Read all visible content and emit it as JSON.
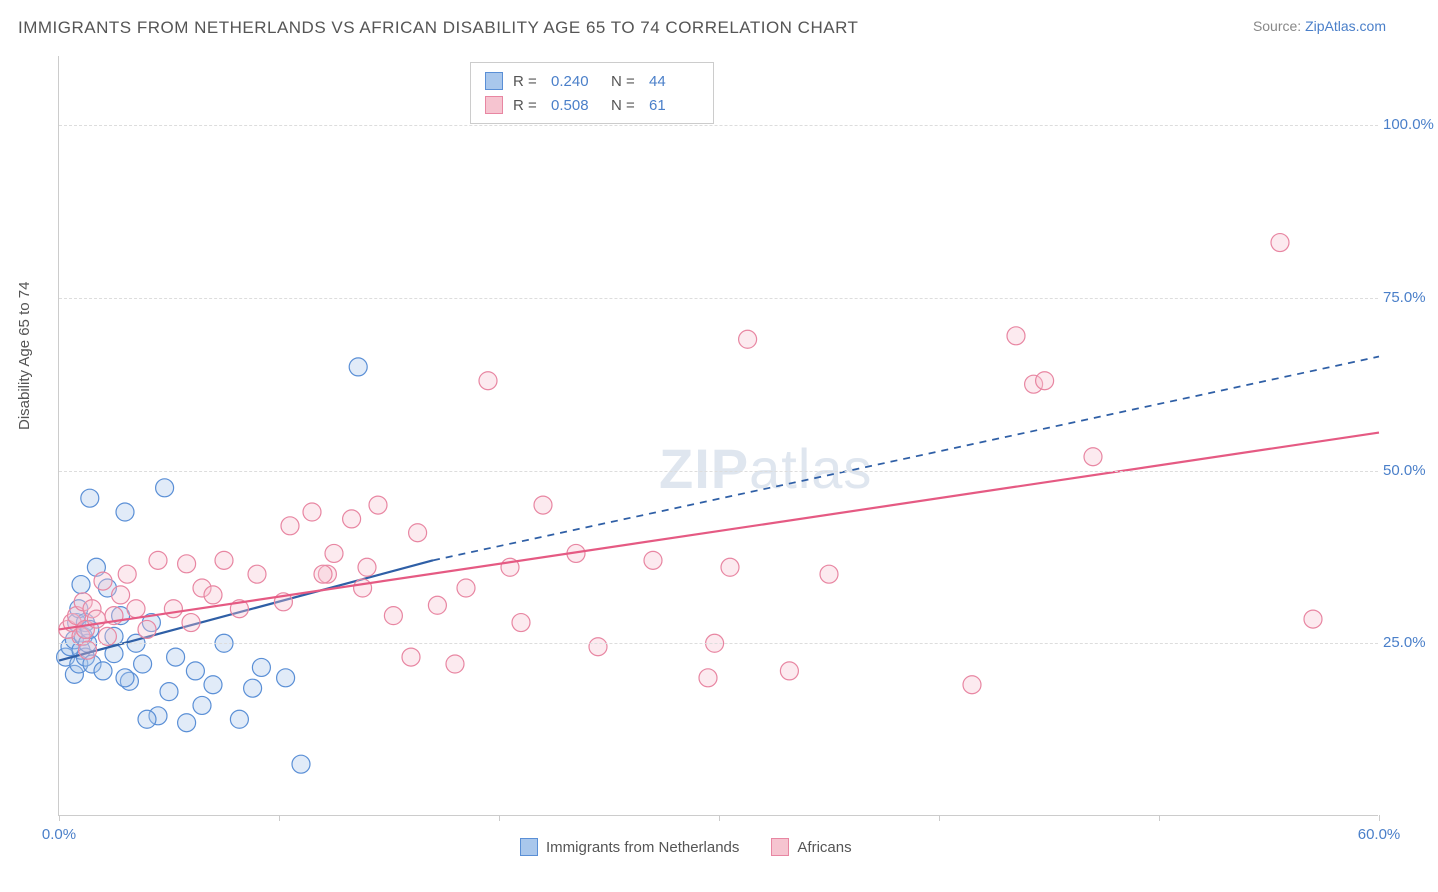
{
  "title": "IMMIGRANTS FROM NETHERLANDS VS AFRICAN DISABILITY AGE 65 TO 74 CORRELATION CHART",
  "source": {
    "label": "Source: ",
    "name": "ZipAtlas.com"
  },
  "y_axis_label": "Disability Age 65 to 74",
  "watermark": {
    "bold": "ZIP",
    "light": "atlas"
  },
  "chart": {
    "type": "scatter",
    "xlim": [
      0,
      60
    ],
    "ylim": [
      0,
      110
    ],
    "xtick_positions": [
      0,
      10,
      20,
      30,
      40,
      50,
      60
    ],
    "xtick_labels": {
      "0": "0.0%",
      "60": "60.0%"
    },
    "ytick_positions": [
      25,
      50,
      75,
      100
    ],
    "ytick_labels": {
      "25": "25.0%",
      "50": "50.0%",
      "75": "75.0%",
      "100": "100.0%"
    },
    "grid_color": "#dddddd",
    "axis_color": "#cccccc",
    "background_color": "#ffffff",
    "label_color": "#4a7fc9",
    "text_color": "#555555",
    "marker_radius": 9,
    "marker_stroke_width": 1.2,
    "marker_fill_opacity": 0.35,
    "series": [
      {
        "name": "Immigrants from Netherlands",
        "color_fill": "#a9c7ec",
        "color_stroke": "#5a8fd6",
        "legend_color": "#a9c7ec",
        "r": "0.240",
        "n": "44",
        "trend": {
          "x1": 0,
          "y1": 22.5,
          "x2": 17,
          "y2": 37,
          "style": "solid",
          "stroke": "#2f5fa6",
          "width": 2.2,
          "ext_x2": 60,
          "ext_y2": 66.5,
          "ext_style": "dashed"
        },
        "points": [
          [
            0.3,
            23
          ],
          [
            0.5,
            24.5
          ],
          [
            0.7,
            20.5
          ],
          [
            0.7,
            25.5
          ],
          [
            0.8,
            28
          ],
          [
            0.9,
            30
          ],
          [
            0.9,
            22
          ],
          [
            1.0,
            24
          ],
          [
            1.0,
            33.5
          ],
          [
            1.1,
            26
          ],
          [
            1.2,
            23
          ],
          [
            1.2,
            28
          ],
          [
            1.3,
            25
          ],
          [
            1.4,
            46
          ],
          [
            1.4,
            27
          ],
          [
            1.5,
            22
          ],
          [
            1.7,
            36
          ],
          [
            2.0,
            21
          ],
          [
            2.2,
            33
          ],
          [
            2.5,
            23.5
          ],
          [
            2.8,
            29
          ],
          [
            3.0,
            44
          ],
          [
            3.2,
            19.5
          ],
          [
            3.5,
            25
          ],
          [
            3.8,
            22
          ],
          [
            4.2,
            28
          ],
          [
            4.5,
            14.5
          ],
          [
            4.8,
            47.5
          ],
          [
            5.0,
            18
          ],
          [
            5.3,
            23
          ],
          [
            5.8,
            13.5
          ],
          [
            6.2,
            21
          ],
          [
            6.5,
            16
          ],
          [
            7.0,
            19
          ],
          [
            7.5,
            25
          ],
          [
            8.2,
            14
          ],
          [
            8.8,
            18.5
          ],
          [
            9.2,
            21.5
          ],
          [
            10.3,
            20
          ],
          [
            11.0,
            7.5
          ],
          [
            13.6,
            65
          ],
          [
            2.5,
            26
          ],
          [
            3.0,
            20
          ],
          [
            4.0,
            14
          ]
        ]
      },
      {
        "name": "Africans",
        "color_fill": "#f6c4d0",
        "color_stroke": "#e886a2",
        "legend_color": "#f6c4d0",
        "r": "0.508",
        "n": "61",
        "trend": {
          "x1": 0,
          "y1": 27,
          "x2": 60,
          "y2": 55.5,
          "style": "solid",
          "stroke": "#e55a83",
          "width": 2.2
        },
        "points": [
          [
            0.4,
            27
          ],
          [
            0.6,
            28
          ],
          [
            0.8,
            29
          ],
          [
            1.0,
            26
          ],
          [
            1.1,
            31
          ],
          [
            1.2,
            27
          ],
          [
            1.3,
            24
          ],
          [
            1.5,
            30
          ],
          [
            1.7,
            28.5
          ],
          [
            2.0,
            34
          ],
          [
            2.2,
            26
          ],
          [
            2.5,
            29
          ],
          [
            2.8,
            32
          ],
          [
            3.1,
            35
          ],
          [
            3.5,
            30
          ],
          [
            4.0,
            27
          ],
          [
            4.5,
            37
          ],
          [
            5.2,
            30
          ],
          [
            5.8,
            36.5
          ],
          [
            6.5,
            33
          ],
          [
            7.0,
            32
          ],
          [
            7.5,
            37
          ],
          [
            8.2,
            30
          ],
          [
            9.0,
            35
          ],
          [
            10.2,
            31
          ],
          [
            10.5,
            42
          ],
          [
            11.5,
            44
          ],
          [
            12.2,
            35
          ],
          [
            12.5,
            38
          ],
          [
            13.3,
            43
          ],
          [
            13.8,
            33
          ],
          [
            14.5,
            45
          ],
          [
            15.2,
            29
          ],
          [
            16.0,
            23
          ],
          [
            16.3,
            41
          ],
          [
            17.2,
            30.5
          ],
          [
            18.0,
            22
          ],
          [
            18.5,
            33
          ],
          [
            19.5,
            63
          ],
          [
            20.5,
            36
          ],
          [
            21.0,
            28
          ],
          [
            22.0,
            45
          ],
          [
            23.5,
            38
          ],
          [
            24.5,
            24.5
          ],
          [
            27.0,
            37
          ],
          [
            29.5,
            20
          ],
          [
            29.8,
            25
          ],
          [
            30.5,
            36
          ],
          [
            31.3,
            69
          ],
          [
            33.2,
            21
          ],
          [
            35.0,
            35
          ],
          [
            41.5,
            19
          ],
          [
            43.5,
            69.5
          ],
          [
            44.3,
            62.5
          ],
          [
            44.8,
            63
          ],
          [
            47.0,
            52
          ],
          [
            55.5,
            83
          ],
          [
            57.0,
            28.5
          ],
          [
            6.0,
            28
          ],
          [
            12.0,
            35
          ],
          [
            14.0,
            36
          ]
        ]
      }
    ],
    "legend_bottom": [
      {
        "label": "Immigrants from Netherlands",
        "color": "#a9c7ec",
        "stroke": "#5a8fd6"
      },
      {
        "label": "Africans",
        "color": "#f6c4d0",
        "stroke": "#e886a2"
      }
    ]
  }
}
